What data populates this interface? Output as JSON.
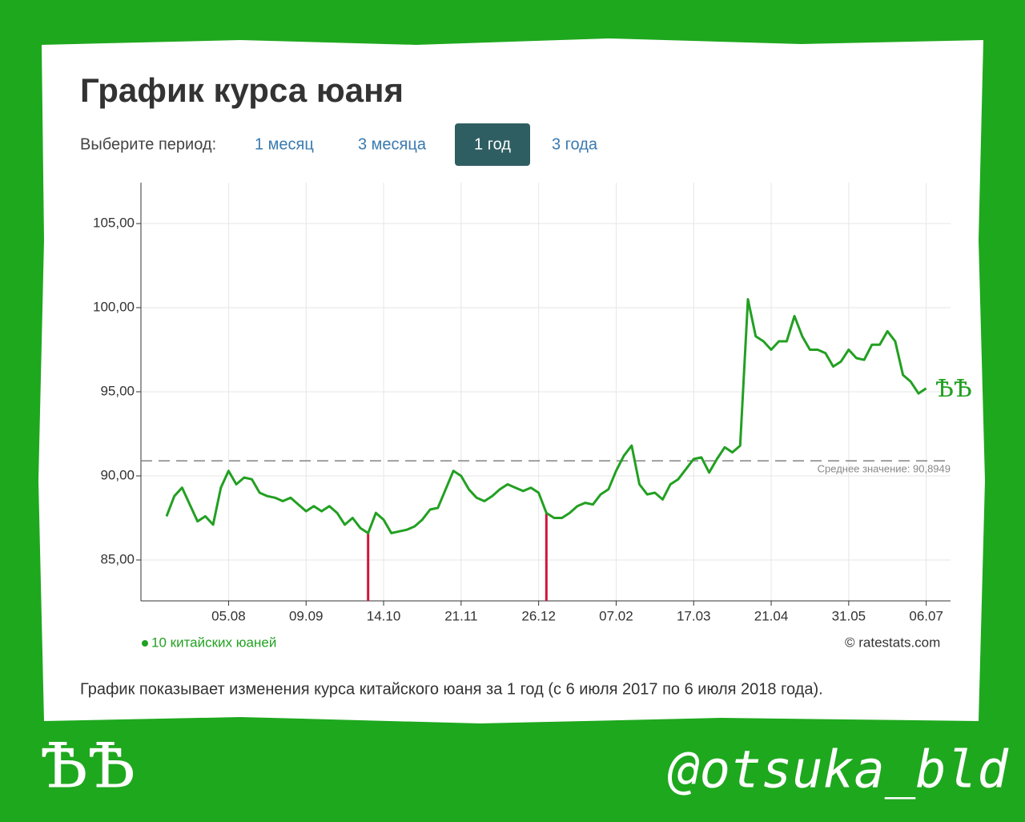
{
  "header": {
    "title": "График курса юаня",
    "period_label": "Выберите период:",
    "periods": [
      {
        "label": "1 месяц",
        "active": false
      },
      {
        "label": "3 месяца",
        "active": false
      },
      {
        "label": "1 год",
        "active": true
      },
      {
        "label": "3 года",
        "active": false
      }
    ]
  },
  "chart_data": {
    "type": "line",
    "categories": [
      null,
      null,
      null,
      null,
      null,
      null,
      null,
      null,
      "05.08",
      null,
      null,
      null,
      null,
      null,
      null,
      null,
      null,
      null,
      "09.09",
      null,
      null,
      null,
      null,
      null,
      null,
      null,
      null,
      null,
      "14.10",
      null,
      null,
      null,
      null,
      null,
      null,
      null,
      null,
      null,
      "21.11",
      null,
      null,
      null,
      null,
      null,
      null,
      null,
      null,
      null,
      "26.12",
      null,
      null,
      null,
      null,
      null,
      null,
      null,
      null,
      null,
      "07.02",
      null,
      null,
      null,
      null,
      null,
      null,
      null,
      null,
      null,
      "17.03",
      null,
      null,
      null,
      null,
      null,
      null,
      null,
      null,
      null,
      "21.04",
      null,
      null,
      null,
      null,
      null,
      null,
      null,
      null,
      null,
      "31.05",
      null,
      null,
      null,
      null,
      null,
      null,
      null,
      null,
      null,
      "06.07"
    ],
    "series": [
      {
        "name": "10 китайских юаней",
        "color": "#22a022",
        "values": [
          87.6,
          88.8,
          89.3,
          88.3,
          87.3,
          87.6,
          87.1,
          89.3,
          90.3,
          89.5,
          89.9,
          89.8,
          89.0,
          88.8,
          88.7,
          88.5,
          88.7,
          88.3,
          87.9,
          88.2,
          87.9,
          88.2,
          87.8,
          87.1,
          87.5,
          86.9,
          86.6,
          87.8,
          87.4,
          86.6,
          86.7,
          86.8,
          87.0,
          87.4,
          88.0,
          88.1,
          89.2,
          90.3,
          90.0,
          89.2,
          88.7,
          88.5,
          88.8,
          89.2,
          89.5,
          89.3,
          89.1,
          89.3,
          89.0,
          87.8,
          87.5,
          87.5,
          87.8,
          88.2,
          88.4,
          88.3,
          88.9,
          89.2,
          90.3,
          91.2,
          91.8,
          89.5,
          88.9,
          89.0,
          88.6,
          89.5,
          89.8,
          90.4,
          91.0,
          91.1,
          90.2,
          91.0,
          91.7,
          91.4,
          91.8,
          100.5,
          98.3,
          98.0,
          97.5,
          98.0,
          98.0,
          99.5,
          98.3,
          97.5,
          97.5,
          97.3,
          96.5,
          96.8,
          97.5,
          97.0,
          96.9,
          97.8,
          97.8,
          98.6,
          98.0,
          96.0,
          95.6,
          94.9,
          95.2
        ]
      }
    ],
    "ylim": [
      82.57,
      107.43
    ],
    "yticks": [
      {
        "value": 85,
        "label": "85,00"
      },
      {
        "value": 90,
        "label": "90,00"
      },
      {
        "value": 95,
        "label": "95,00"
      },
      {
        "value": 100,
        "label": "100,00"
      },
      {
        "value": 105,
        "label": "105,00"
      }
    ],
    "grid": true,
    "mean": {
      "value": 90.8949,
      "label": "Среднее значение: 90,8949"
    },
    "source": "© ratestats.com"
  },
  "caption": "График показывает изменения курса китайского юаня за 1 год (с 6 июля 2017 по 6 июля 2018 года).",
  "watermarks": {
    "chart_mark": "ѢѢ",
    "corner_mark": "ѢѢ",
    "handle": "@otsuka_bld"
  }
}
